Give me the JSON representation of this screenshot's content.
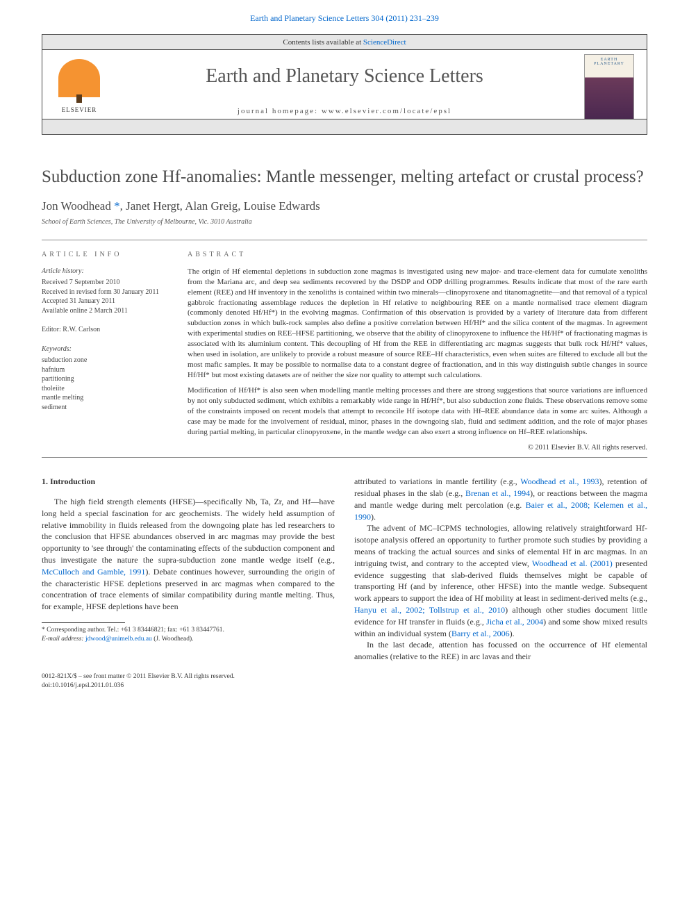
{
  "top_link": {
    "journal": "Earth and Planetary Science Letters",
    "vol_pages": "304 (2011) 231–239"
  },
  "header": {
    "lists_text": "Contents lists available at ",
    "lists_link": "ScienceDirect",
    "journal_title": "Earth and Planetary Science Letters",
    "homepage_label": "journal homepage: ",
    "homepage_url": "www.elsevier.com/locate/epsl",
    "publisher": "ELSEVIER",
    "cover_title": "EARTH PLANETARY"
  },
  "article": {
    "title": "Subduction zone Hf-anomalies: Mantle messenger, melting artefact or crustal process?",
    "authors_prefix": "Jon Woodhead",
    "corr_mark": "*",
    "authors_rest": ", Janet Hergt, Alan Greig, Louise Edwards",
    "affiliation": "School of Earth Sciences, The University of Melbourne, Vic. 3010 Australia"
  },
  "info": {
    "heading": "ARTICLE INFO",
    "history_title": "Article history:",
    "history": [
      "Received 7 September 2010",
      "Received in revised form 30 January 2011",
      "Accepted 31 January 2011",
      "Available online 2 March 2011"
    ],
    "editor_label": "Editor: ",
    "editor": "R.W. Carlson",
    "keywords_title": "Keywords:",
    "keywords": [
      "subduction zone",
      "hafnium",
      "partitioning",
      "tholeiite",
      "mantle melting",
      "sediment"
    ]
  },
  "abstract": {
    "heading": "ABSTRACT",
    "p1": "The origin of Hf elemental depletions in subduction zone magmas is investigated using new major- and trace-element data for cumulate xenoliths from the Mariana arc, and deep sea sediments recovered by the DSDP and ODP drilling programmes. Results indicate that most of the rare earth element (REE) and Hf inventory in the xenoliths is contained within two minerals—clinopyroxene and titanomagnetite—and that removal of a typical gabbroic fractionating assemblage reduces the depletion in Hf relative to neighbouring REE on a mantle normalised trace element diagram (commonly denoted Hf/Hf*) in the evolving magmas. Confirmation of this observation is provided by a variety of literature data from different subduction zones in which bulk-rock samples also define a positive correlation between Hf/Hf* and the silica content of the magmas. In agreement with experimental studies on REE–HFSE partitioning, we observe that the ability of clinopyroxene to influence the Hf/Hf* of fractionating magmas is associated with its aluminium content. This decoupling of Hf from the REE in differentiating arc magmas suggests that bulk rock Hf/Hf* values, when used in isolation, are unlikely to provide a robust measure of source REE–Hf characteristics, even when suites are filtered to exclude all but the most mafic samples. It may be possible to normalise data to a constant degree of fractionation, and in this way distinguish subtle changes in source Hf/Hf* but most existing datasets are of neither the size nor quality to attempt such calculations.",
    "p2": "Modification of Hf/Hf* is also seen when modelling mantle melting processes and there are strong suggestions that source variations are influenced by not only subducted sediment, which exhibits a remarkably wide range in Hf/Hf*, but also subduction zone fluids. These observations remove some of the constraints imposed on recent models that attempt to reconcile Hf isotope data with Hf–REE abundance data in some arc suites. Although a case may be made for the involvement of residual, minor, phases in the downgoing slab, fluid and sediment addition, and the role of major phases during partial melting, in particular clinopyroxene, in the mantle wedge can also exert a strong influence on Hf–REE relationships.",
    "copyright": "© 2011 Elsevier B.V. All rights reserved."
  },
  "body": {
    "section_heading": "1. Introduction",
    "left_p1_a": "The high field strength elements (HFSE)—specifically Nb, Ta, Zr, and Hf—have long held a special fascination for arc geochemists. The widely held assumption of relative immobility in fluids released from the downgoing plate has led researchers to the conclusion that HFSE abundances observed in arc magmas may provide the best opportunity to 'see through' the contaminating effects of the subduction component and thus investigate the nature the supra-subduction zone mantle wedge itself (e.g., ",
    "left_ref1": "McCulloch and Gamble, 1991",
    "left_p1_b": "). Debate continues however, surrounding the origin of the characteristic HFSE depletions preserved in arc magmas when compared to the concentration of trace elements of similar compatibility during mantle melting. Thus, for example, HFSE depletions have been",
    "right_p1_a": "attributed to variations in mantle fertility (e.g., ",
    "right_ref1": "Woodhead et al., 1993",
    "right_p1_b": "), retention of residual phases in the slab (e.g., ",
    "right_ref2": "Brenan et al., 1994",
    "right_p1_c": "), or reactions between the magma and mantle wedge during melt percolation (e.g. ",
    "right_ref3": "Baier et al., 2008; Kelemen et al., 1990",
    "right_p1_d": ").",
    "right_p2_a": "The advent of MC–ICPMS technologies, allowing relatively straightforward Hf-isotope analysis offered an opportunity to further promote such studies by providing a means of tracking the actual sources and sinks of elemental Hf in arc magmas. In an intriguing twist, and contrary to the accepted view, ",
    "right_ref4": "Woodhead et al. (2001)",
    "right_p2_b": " presented evidence suggesting that slab-derived fluids themselves might be capable of transporting Hf (and by inference, other HFSE) into the mantle wedge. Subsequent work appears to support the idea of Hf mobility at least in sediment-derived melts (e.g., ",
    "right_ref5": "Hanyu et al., 2002; Tollstrup et al., 2010",
    "right_p2_c": ") although other studies document little evidence for Hf transfer in fluids (e.g., ",
    "right_ref6": "Jicha et al., 2004",
    "right_p2_d": ") and some show mixed results within an individual system (",
    "right_ref7": "Barry et al., 2006",
    "right_p2_e": ").",
    "right_p3": "In the last decade, attention has focussed on the occurrence of Hf elemental anomalies (relative to the REE) in arc lavas and their"
  },
  "footnote": {
    "corr_label": "* Corresponding author. Tel.: +61 3 83446821; fax: +61 3 83447761.",
    "email_label": "E-mail address:",
    "email": "jdwood@unimelb.edu.au",
    "email_who": "(J. Woodhead)."
  },
  "bottom": {
    "issn": "0012-821X/$ – see front matter © 2011 Elsevier B.V. All rights reserved.",
    "doi": "doi:10.1016/j.epsl.2011.01.036"
  },
  "colors": {
    "link": "#0066cc",
    "text": "#333333",
    "heading": "#4a4a4a",
    "band": "#e6e6e6",
    "elsevier_orange": "#f59331"
  },
  "typography": {
    "title_fontsize": 25,
    "journal_fontsize": 28,
    "body_fontsize": 12,
    "abstract_fontsize": 11,
    "info_fontsize": 10
  }
}
